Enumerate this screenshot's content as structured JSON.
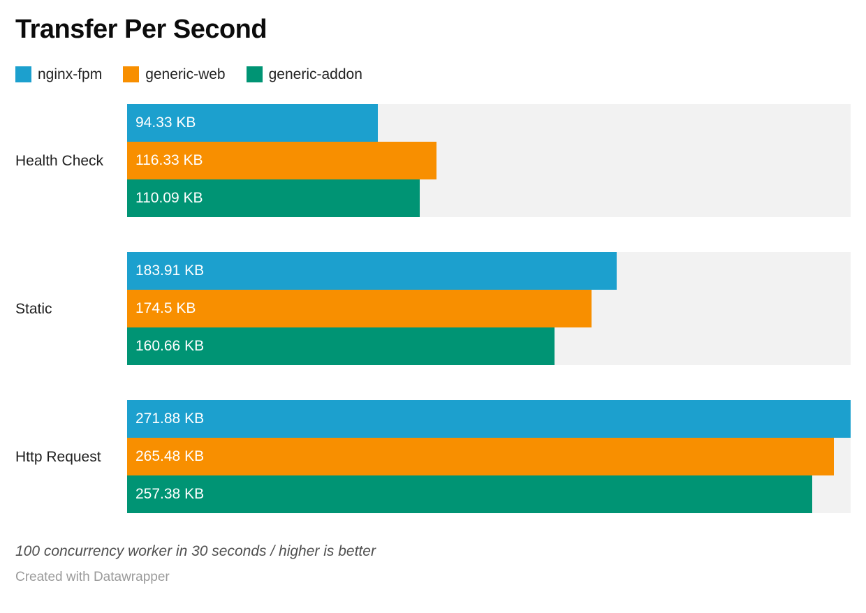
{
  "title": "Transfer Per Second",
  "chart_data": {
    "type": "bar",
    "orientation": "horizontal",
    "title": "Transfer Per Second",
    "categories": [
      "Health Check",
      "Static",
      "Http Request"
    ],
    "series": [
      {
        "name": "nginx-fpm",
        "color": "#1ca0ce",
        "values": [
          94.33,
          183.91,
          271.88
        ],
        "labels": [
          "94.33 KB",
          "183.91 KB",
          "271.88 KB"
        ]
      },
      {
        "name": "generic-web",
        "color": "#f88f00",
        "values": [
          116.33,
          174.5,
          265.48
        ],
        "labels": [
          "116.33 KB",
          "174.5 KB",
          "265.48 KB"
        ]
      },
      {
        "name": "generic-addon",
        "color": "#009474",
        "values": [
          110.09,
          160.66,
          257.38
        ],
        "labels": [
          "110.09 KB",
          "160.66 KB",
          "257.38 KB"
        ]
      }
    ],
    "unit": "KB",
    "xlim": [
      0,
      271.88
    ],
    "track_color": "#f2f2f2",
    "value_label_position": "inside-left",
    "value_label_color": "#ffffff",
    "legend_position": "top-left",
    "grid": false
  },
  "footer": {
    "note": "100 concurrency worker in 30 seconds / higher is better",
    "attribution": "Created with Datawrapper"
  }
}
